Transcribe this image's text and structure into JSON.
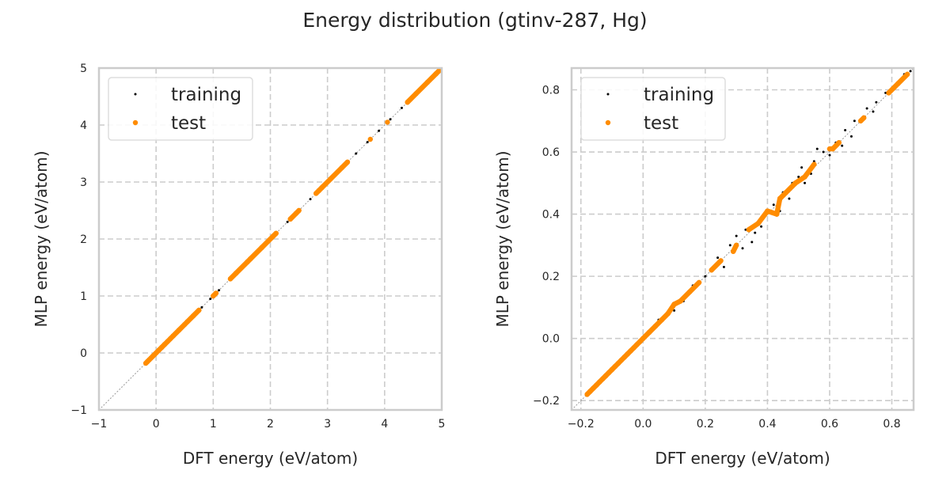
{
  "title": "Energy distribution (gtinv-287, Hg)",
  "colors": {
    "training": "#000000",
    "test": "#ff8c00",
    "grid": "#cccccc",
    "diagonal": "#999999"
  },
  "chart_data": [
    {
      "type": "scatter",
      "xlabel": "DFT energy (eV/atom)",
      "ylabel": "MLP energy (eV/atom)",
      "xlim": [
        -1,
        5
      ],
      "ylim": [
        -1,
        5
      ],
      "xticks": [
        "-1",
        "0",
        "1",
        "2",
        "3",
        "4",
        "5"
      ],
      "xtick_values": [
        -1,
        0,
        1,
        2,
        3,
        4,
        5
      ],
      "yticks": [
        "-1",
        "0",
        "1",
        "2",
        "3",
        "4",
        "5"
      ],
      "ytick_values": [
        -1,
        0,
        1,
        2,
        3,
        4,
        5
      ],
      "grid": true,
      "legend": "top-left",
      "diagonal_reference": true,
      "series": [
        {
          "name": "training",
          "points": [
            [
              -0.15,
              -0.15
            ],
            [
              0.0,
              0.0
            ],
            [
              0.2,
              0.2
            ],
            [
              0.4,
              0.4
            ],
            [
              0.6,
              0.6
            ],
            [
              0.8,
              0.8
            ],
            [
              0.95,
              0.95
            ],
            [
              1.1,
              1.1
            ],
            [
              1.3,
              1.3
            ],
            [
              1.5,
              1.5
            ],
            [
              1.7,
              1.7
            ],
            [
              1.9,
              1.9
            ],
            [
              2.1,
              2.1
            ],
            [
              2.3,
              2.3
            ],
            [
              2.5,
              2.5
            ],
            [
              2.7,
              2.7
            ],
            [
              2.9,
              2.9
            ],
            [
              3.1,
              3.1
            ],
            [
              3.3,
              3.3
            ],
            [
              3.5,
              3.5
            ],
            [
              3.7,
              3.7
            ],
            [
              3.9,
              3.9
            ],
            [
              4.1,
              4.1
            ],
            [
              4.3,
              4.3
            ],
            [
              4.5,
              4.5
            ],
            [
              4.7,
              4.7
            ],
            [
              4.85,
              4.85
            ],
            [
              4.95,
              4.95
            ]
          ]
        },
        {
          "name": "test",
          "points": [
            [
              -0.18,
              -0.18
            ],
            [
              -0.15,
              -0.15
            ],
            [
              -0.12,
              -0.12
            ],
            [
              -0.09,
              -0.09
            ],
            [
              -0.06,
              -0.06
            ],
            [
              -0.03,
              -0.03
            ],
            [
              0.0,
              0.0
            ],
            [
              0.05,
              0.05
            ],
            [
              0.1,
              0.1
            ],
            [
              0.15,
              0.15
            ],
            [
              0.2,
              0.2
            ],
            [
              0.25,
              0.25
            ],
            [
              0.3,
              0.3
            ],
            [
              0.4,
              0.4
            ],
            [
              0.5,
              0.5
            ],
            [
              0.55,
              0.55
            ],
            [
              0.65,
              0.65
            ],
            [
              0.75,
              0.75
            ],
            [
              1.0,
              1.0
            ],
            [
              1.05,
              1.05
            ],
            [
              1.3,
              1.3
            ],
            [
              1.4,
              1.4
            ],
            [
              1.6,
              1.6
            ],
            [
              1.65,
              1.65
            ],
            [
              1.85,
              1.85
            ],
            [
              2.05,
              2.05
            ],
            [
              2.1,
              2.1
            ],
            [
              2.35,
              2.35
            ],
            [
              2.45,
              2.45
            ],
            [
              2.5,
              2.5
            ],
            [
              2.8,
              2.8
            ],
            [
              2.85,
              2.85
            ],
            [
              2.9,
              2.9
            ],
            [
              3.05,
              3.05
            ],
            [
              3.25,
              3.25
            ],
            [
              3.35,
              3.35
            ],
            [
              3.75,
              3.75
            ],
            [
              4.05,
              4.05
            ],
            [
              4.4,
              4.4
            ],
            [
              4.55,
              4.55
            ],
            [
              4.75,
              4.75
            ],
            [
              4.9,
              4.9
            ],
            [
              4.95,
              4.95
            ]
          ]
        }
      ]
    },
    {
      "type": "scatter",
      "xlabel": "DFT energy (eV/atom)",
      "ylabel": "MLP energy (eV/atom)",
      "xlim": [
        -0.23,
        0.87
      ],
      "ylim": [
        -0.23,
        0.87
      ],
      "xticks": [
        "-0.2",
        "0.0",
        "0.2",
        "0.4",
        "0.6",
        "0.8"
      ],
      "xtick_values": [
        -0.2,
        0.0,
        0.2,
        0.4,
        0.6,
        0.8
      ],
      "yticks": [
        "-0.2",
        "0.0",
        "0.2",
        "0.4",
        "0.6",
        "0.8"
      ],
      "ytick_values": [
        -0.2,
        0.0,
        0.2,
        0.4,
        0.6,
        0.8
      ],
      "grid": true,
      "legend": "top-left",
      "diagonal_reference": true,
      "series": [
        {
          "name": "training",
          "points": [
            [
              -0.1,
              -0.1
            ],
            [
              -0.05,
              -0.05
            ],
            [
              0.0,
              0.0
            ],
            [
              0.05,
              0.06
            ],
            [
              0.1,
              0.09
            ],
            [
              0.13,
              0.12
            ],
            [
              0.16,
              0.17
            ],
            [
              0.2,
              0.2
            ],
            [
              0.24,
              0.26
            ],
            [
              0.26,
              0.23
            ],
            [
              0.28,
              0.3
            ],
            [
              0.3,
              0.33
            ],
            [
              0.32,
              0.29
            ],
            [
              0.33,
              0.35
            ],
            [
              0.35,
              0.31
            ],
            [
              0.36,
              0.34
            ],
            [
              0.38,
              0.36
            ],
            [
              0.4,
              0.41
            ],
            [
              0.42,
              0.43
            ],
            [
              0.44,
              0.41
            ],
            [
              0.45,
              0.47
            ],
            [
              0.47,
              0.45
            ],
            [
              0.48,
              0.5
            ],
            [
              0.5,
              0.52
            ],
            [
              0.51,
              0.55
            ],
            [
              0.52,
              0.5
            ],
            [
              0.54,
              0.53
            ],
            [
              0.55,
              0.57
            ],
            [
              0.56,
              0.61
            ],
            [
              0.58,
              0.6
            ],
            [
              0.6,
              0.59
            ],
            [
              0.62,
              0.63
            ],
            [
              0.64,
              0.62
            ],
            [
              0.65,
              0.67
            ],
            [
              0.67,
              0.65
            ],
            [
              0.68,
              0.7
            ],
            [
              0.7,
              0.7
            ],
            [
              0.72,
              0.74
            ],
            [
              0.74,
              0.73
            ],
            [
              0.75,
              0.76
            ],
            [
              0.78,
              0.79
            ],
            [
              0.82,
              0.82
            ],
            [
              0.84,
              0.85
            ],
            [
              0.86,
              0.86
            ]
          ]
        },
        {
          "name": "test",
          "points": [
            [
              -0.18,
              -0.18
            ],
            [
              -0.17,
              -0.17
            ],
            [
              -0.16,
              -0.16
            ],
            [
              -0.15,
              -0.15
            ],
            [
              -0.14,
              -0.14
            ],
            [
              -0.13,
              -0.13
            ],
            [
              -0.12,
              -0.12
            ],
            [
              -0.11,
              -0.11
            ],
            [
              -0.1,
              -0.1
            ],
            [
              -0.09,
              -0.09
            ],
            [
              -0.08,
              -0.08
            ],
            [
              -0.07,
              -0.07
            ],
            [
              -0.06,
              -0.06
            ],
            [
              -0.05,
              -0.05
            ],
            [
              -0.04,
              -0.04
            ],
            [
              -0.03,
              -0.03
            ],
            [
              -0.02,
              -0.02
            ],
            [
              -0.01,
              -0.01
            ],
            [
              0.0,
              0.0
            ],
            [
              0.02,
              0.02
            ],
            [
              0.04,
              0.04
            ],
            [
              0.06,
              0.06
            ],
            [
              0.08,
              0.08
            ],
            [
              0.1,
              0.11
            ],
            [
              0.12,
              0.12
            ],
            [
              0.15,
              0.15
            ],
            [
              0.18,
              0.18
            ],
            [
              0.22,
              0.22
            ],
            [
              0.25,
              0.25
            ],
            [
              0.29,
              0.28
            ],
            [
              0.3,
              0.3
            ],
            [
              0.34,
              0.35
            ],
            [
              0.37,
              0.37
            ],
            [
              0.4,
              0.41
            ],
            [
              0.43,
              0.4
            ],
            [
              0.44,
              0.45
            ],
            [
              0.46,
              0.47
            ],
            [
              0.49,
              0.5
            ],
            [
              0.52,
              0.52
            ],
            [
              0.55,
              0.56
            ],
            [
              0.6,
              0.61
            ],
            [
              0.61,
              0.61
            ],
            [
              0.63,
              0.63
            ],
            [
              0.7,
              0.7
            ],
            [
              0.71,
              0.71
            ],
            [
              0.79,
              0.79
            ],
            [
              0.82,
              0.82
            ],
            [
              0.85,
              0.85
            ]
          ]
        }
      ]
    }
  ]
}
